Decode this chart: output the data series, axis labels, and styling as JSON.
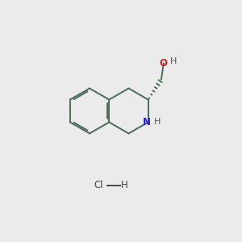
{
  "bg_color": "#ebebeb",
  "atom_colors": {
    "C": "#000000",
    "N": "#2222cc",
    "O": "#cc2222",
    "H": "#555555",
    "Cl": "#444444"
  },
  "bond_color": "#4a6a5a",
  "font_size_atom": 8.5,
  "figsize": [
    3.0,
    3.0
  ],
  "dpi": 100,
  "bl": 0.95
}
